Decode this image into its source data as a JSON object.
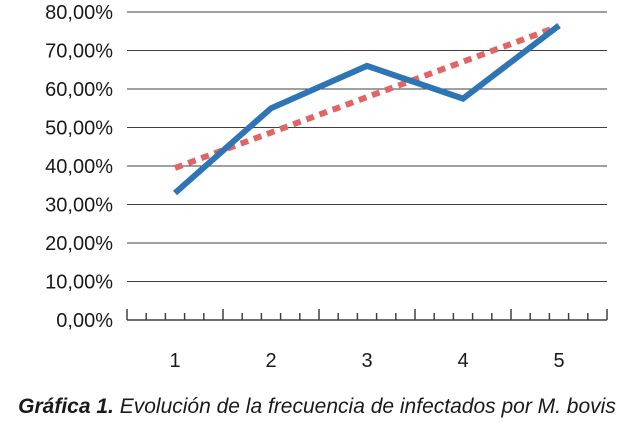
{
  "chart_data": {
    "type": "line",
    "categories": [
      "1",
      "2",
      "3",
      "4",
      "5"
    ],
    "y_ticks": [
      "0,00%",
      "10,00%",
      "20,00%",
      "30,00%",
      "40,00%",
      "50,00%",
      "60,00%",
      "70,00%",
      "80,00%"
    ],
    "ylim": [
      0,
      80
    ],
    "grid": true,
    "series": [
      {
        "values": [
          33,
          55,
          66,
          57.5,
          76.5
        ],
        "color": "#2e75b6",
        "style": "solid"
      },
      {
        "values": [
          39.5,
          48.7,
          57.9,
          67.1,
          76.3
        ],
        "color": "#e06666",
        "style": "dotted",
        "trendline": true
      }
    ]
  },
  "caption": {
    "label": "Gráfica 1.",
    "text": "Evolución de la frecuencia de infectados por M. bovis"
  }
}
